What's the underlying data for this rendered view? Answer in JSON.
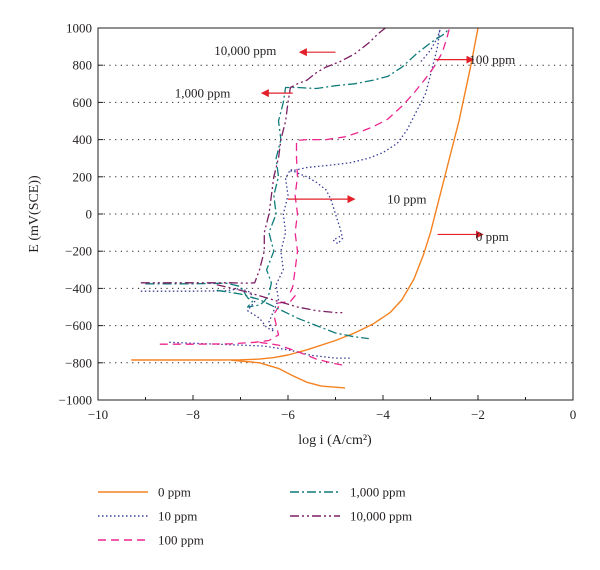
{
  "chart_data": {
    "type": "line",
    "xlabel": "log i (A/cm²)",
    "ylabel": "E (mV(SCE))",
    "xlim": [
      -10,
      0
    ],
    "ylim": [
      -1000,
      1000
    ],
    "x_ticks": [
      "−10",
      "−8",
      "−6",
      "−4",
      "−2",
      "0"
    ],
    "y_ticks": [
      "−1000",
      "−800",
      "−600",
      "−400",
      "−200",
      "0",
      "200",
      "400",
      "600",
      "800",
      "1000"
    ],
    "grid": "horizontal dotted",
    "legend_position": "bottom",
    "series": [
      {
        "name": "0 ppm",
        "color": "#f58220",
        "dash": "solid",
        "points": [
          [
            -9.3,
            -785
          ],
          [
            -8.5,
            -785
          ],
          [
            -7.5,
            -785
          ],
          [
            -7.0,
            -784
          ],
          [
            -6.6,
            -780
          ],
          [
            -6.3,
            -772
          ],
          [
            -6.0,
            -758
          ],
          [
            -5.6,
            -730
          ],
          [
            -5.0,
            -680
          ],
          [
            -4.6,
            -640
          ],
          [
            -4.2,
            -590
          ],
          [
            -3.85,
            -530
          ],
          [
            -3.6,
            -460
          ],
          [
            -3.35,
            -350
          ],
          [
            -3.15,
            -220
          ],
          [
            -3.0,
            -100
          ],
          [
            -2.85,
            50
          ],
          [
            -2.65,
            250
          ],
          [
            -2.4,
            500
          ],
          [
            -2.15,
            800
          ],
          [
            -2.0,
            1000
          ]
        ],
        "extra_points": [
          [
            -7.2,
            -786
          ],
          [
            -6.6,
            -800
          ],
          [
            -6.2,
            -830
          ],
          [
            -5.9,
            -870
          ],
          [
            -5.6,
            -905
          ],
          [
            -5.3,
            -925
          ],
          [
            -4.8,
            -935
          ]
        ]
      },
      {
        "name": "10 ppm",
        "color": "#3a3d97",
        "dash": "dotted",
        "points": [
          [
            -9.1,
            -415
          ],
          [
            -8.0,
            -415
          ],
          [
            -7.3,
            -413
          ],
          [
            -7.0,
            -400
          ],
          [
            -6.8,
            -420
          ],
          [
            -6.7,
            -470
          ],
          [
            -6.85,
            -520
          ],
          [
            -6.6,
            -560
          ],
          [
            -6.45,
            -610
          ],
          [
            -6.3,
            -630
          ],
          [
            -6.4,
            -580
          ],
          [
            -6.2,
            -460
          ],
          [
            -6.25,
            -380
          ],
          [
            -6.1,
            -300
          ],
          [
            -6.15,
            -200
          ],
          [
            -6.05,
            -100
          ],
          [
            -6.1,
            0
          ],
          [
            -6.0,
            100
          ],
          [
            -6.05,
            190
          ],
          [
            -5.95,
            240
          ],
          [
            -5.8,
            220
          ],
          [
            -5.6,
            200
          ],
          [
            -5.4,
            170
          ],
          [
            -5.2,
            130
          ],
          [
            -5.1,
            80
          ],
          [
            -5.0,
            0
          ],
          [
            -4.9,
            -80
          ],
          [
            -4.85,
            -130
          ],
          [
            -4.95,
            -160
          ],
          [
            -5.05,
            -140
          ],
          [
            -4.9,
            -120
          ]
        ],
        "extra_points": [
          [
            -8.5,
            -690
          ],
          [
            -7.5,
            -700
          ],
          [
            -7.0,
            -705
          ],
          [
            -6.5,
            -710
          ],
          [
            -6.0,
            -730
          ],
          [
            -5.5,
            -760
          ],
          [
            -5.0,
            -775
          ],
          [
            -4.7,
            -775
          ]
        ],
        "upper_points": [
          [
            -5.95,
            230
          ],
          [
            -5.6,
            250
          ],
          [
            -5.2,
            260
          ],
          [
            -4.7,
            275
          ],
          [
            -4.3,
            300
          ],
          [
            -4.0,
            330
          ],
          [
            -3.7,
            380
          ],
          [
            -3.5,
            450
          ],
          [
            -3.3,
            550
          ],
          [
            -3.1,
            650
          ],
          [
            -2.95,
            800
          ],
          [
            -2.85,
            900
          ],
          [
            -2.8,
            1000
          ]
        ],
        "top_points": [
          [
            -3.2,
            820
          ],
          [
            -3.0,
            880
          ],
          [
            -2.85,
            950
          ],
          [
            -2.8,
            990
          ]
        ]
      },
      {
        "name": "100 ppm",
        "color": "#ec268f",
        "dash": "dashed",
        "points": [
          [
            -8.7,
            -700
          ],
          [
            -8.0,
            -700
          ],
          [
            -7.2,
            -698
          ],
          [
            -6.7,
            -690
          ],
          [
            -6.4,
            -680
          ],
          [
            -6.2,
            -650
          ],
          [
            -6.3,
            -540
          ],
          [
            -6.2,
            -500
          ],
          [
            -6.25,
            -480
          ],
          [
            -5.95,
            -470
          ],
          [
            -5.85,
            -440
          ],
          [
            -5.95,
            -420
          ],
          [
            -5.9,
            -390
          ],
          [
            -5.85,
            -300
          ],
          [
            -5.8,
            -200
          ],
          [
            -5.85,
            -100
          ],
          [
            -5.8,
            0
          ],
          [
            -5.85,
            100
          ],
          [
            -5.8,
            200
          ],
          [
            -5.82,
            300
          ],
          [
            -5.82,
            395
          ],
          [
            -5.6,
            400
          ],
          [
            -5.2,
            400
          ],
          [
            -4.8,
            415
          ],
          [
            -4.5,
            440
          ],
          [
            -4.2,
            470
          ],
          [
            -3.9,
            510
          ],
          [
            -3.6,
            580
          ],
          [
            -3.35,
            650
          ],
          [
            -3.1,
            730
          ],
          [
            -2.9,
            800
          ],
          [
            -2.75,
            870
          ],
          [
            -2.65,
            950
          ],
          [
            -2.6,
            1000
          ]
        ],
        "extra_points": [
          [
            -6.6,
            -690
          ],
          [
            -6.2,
            -705
          ],
          [
            -5.8,
            -740
          ],
          [
            -5.4,
            -780
          ],
          [
            -5.1,
            -800
          ],
          [
            -4.8,
            -815
          ]
        ]
      },
      {
        "name": "1,000 ppm",
        "color": "#0f7c7b",
        "dash": "dashdot",
        "points": [
          [
            -9.0,
            -375
          ],
          [
            -8.0,
            -375
          ],
          [
            -7.3,
            -372
          ],
          [
            -7.0,
            -390
          ],
          [
            -6.85,
            -450
          ],
          [
            -6.75,
            -470
          ],
          [
            -6.85,
            -500
          ],
          [
            -6.6,
            -490
          ],
          [
            -6.5,
            -470
          ],
          [
            -6.4,
            -430
          ],
          [
            -6.35,
            -370
          ],
          [
            -6.45,
            -300
          ],
          [
            -6.3,
            -200
          ],
          [
            -6.4,
            -100
          ],
          [
            -6.25,
            0
          ],
          [
            -6.3,
            100
          ],
          [
            -6.2,
            200
          ],
          [
            -6.25,
            300
          ],
          [
            -6.15,
            400
          ],
          [
            -6.2,
            500
          ],
          [
            -6.1,
            600
          ],
          [
            -6.05,
            680
          ],
          [
            -5.8,
            680
          ],
          [
            -5.4,
            675
          ],
          [
            -5.0,
            690
          ],
          [
            -4.6,
            700
          ],
          [
            -4.2,
            720
          ],
          [
            -3.9,
            740
          ],
          [
            -3.6,
            790
          ],
          [
            -3.3,
            860
          ],
          [
            -3.0,
            920
          ],
          [
            -2.7,
            970
          ],
          [
            -2.6,
            1000
          ]
        ],
        "extra_points": [
          [
            -7.5,
            -410
          ],
          [
            -7.0,
            -430
          ],
          [
            -6.6,
            -460
          ],
          [
            -6.2,
            -510
          ],
          [
            -5.8,
            -560
          ],
          [
            -5.4,
            -600
          ],
          [
            -5.0,
            -640
          ],
          [
            -4.6,
            -660
          ],
          [
            -4.3,
            -670
          ]
        ]
      },
      {
        "name": "10,000 ppm",
        "color": "#7b1e63",
        "dash": "dashdotdot",
        "points": [
          [
            -9.1,
            -370
          ],
          [
            -8.0,
            -370
          ],
          [
            -7.2,
            -370
          ],
          [
            -6.9,
            -372
          ],
          [
            -6.7,
            -370
          ],
          [
            -6.6,
            -300
          ],
          [
            -6.5,
            -200
          ],
          [
            -6.5,
            -100
          ],
          [
            -6.4,
            0
          ],
          [
            -6.35,
            100
          ],
          [
            -6.3,
            200
          ],
          [
            -6.2,
            300
          ],
          [
            -6.15,
            400
          ],
          [
            -6.05,
            500
          ],
          [
            -6.0,
            600
          ],
          [
            -5.95,
            680
          ],
          [
            -5.8,
            700
          ],
          [
            -5.6,
            720
          ],
          [
            -5.4,
            760
          ],
          [
            -5.2,
            790
          ],
          [
            -4.9,
            820
          ],
          [
            -4.6,
            860
          ],
          [
            -4.3,
            920
          ],
          [
            -4.1,
            970
          ],
          [
            -3.95,
            1000
          ]
        ],
        "extra_points": [
          [
            -7.5,
            -380
          ],
          [
            -7.0,
            -410
          ],
          [
            -6.6,
            -440
          ],
          [
            -6.2,
            -470
          ],
          [
            -5.8,
            -500
          ],
          [
            -5.4,
            -520
          ],
          [
            -5.0,
            -530
          ],
          [
            -4.8,
            -530
          ]
        ]
      }
    ],
    "annotations": [
      {
        "text": "10,000 ppm",
        "x": -6.9,
        "y": 880,
        "arrow_from": [
          -5.0,
          870
        ],
        "arrow_to": [
          -5.75,
          870
        ]
      },
      {
        "text": "1,000 ppm",
        "x": -7.8,
        "y": 650,
        "arrow_from": [
          -5.9,
          650
        ],
        "arrow_to": [
          -6.55,
          650
        ]
      },
      {
        "text": "100 ppm",
        "x": -1.7,
        "y": 830,
        "arrow_from": [
          -2.9,
          830
        ],
        "arrow_to": [
          -2.1,
          830
        ]
      },
      {
        "text": "10 ppm",
        "x": -3.5,
        "y": 80,
        "arrow_from": [
          -6.0,
          80
        ],
        "arrow_to": [
          -4.6,
          80
        ]
      },
      {
        "text": "0 ppm",
        "x": -1.7,
        "y": -120,
        "arrow_from": [
          -2.85,
          -110
        ],
        "arrow_to": [
          -1.9,
          -110
        ]
      }
    ]
  }
}
